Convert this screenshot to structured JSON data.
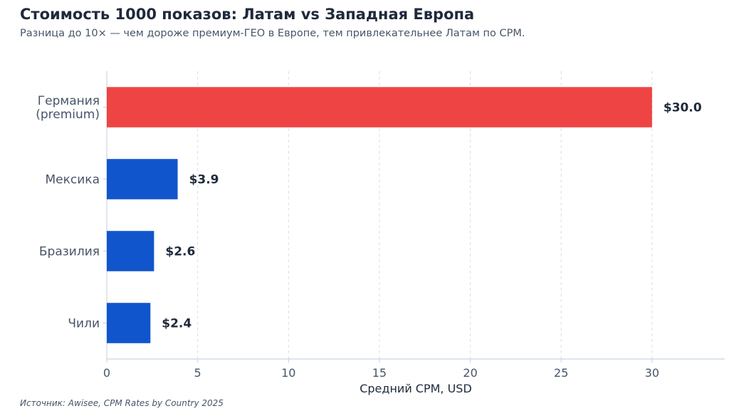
{
  "header": {
    "title": "Стоимость 1000 показов: Латам vs Западная Европа",
    "subtitle": "Разница до 10× — чем дороже премиум-ГЕО в Европе, тем привлекательнее Латам по CPM."
  },
  "footer": {
    "source": "Источник: Awisee, CPM Rates by Country 2025"
  },
  "colors": {
    "highlight": "#ef4444",
    "primary": "#1155cc",
    "grid": "#d8dde6",
    "axis": "#cbd5e1"
  },
  "chart_data": {
    "type": "bar",
    "orientation": "horizontal",
    "categories": [
      [
        "Германия",
        "(premium)"
      ],
      [
        "Мексика"
      ],
      [
        "Бразилия"
      ],
      [
        "Чили"
      ]
    ],
    "values": [
      30.0,
      3.9,
      2.6,
      2.4
    ],
    "value_labels": [
      "$30.0",
      "$3.9",
      "$2.6",
      "$2.4"
    ],
    "bar_colors": [
      "highlight",
      "primary",
      "primary",
      "primary"
    ],
    "xlabel": "Средний CPM, USD",
    "xlim": [
      0,
      34
    ],
    "xticks": [
      0,
      5,
      10,
      15,
      20,
      25,
      30
    ],
    "grid": "x-dashed"
  }
}
